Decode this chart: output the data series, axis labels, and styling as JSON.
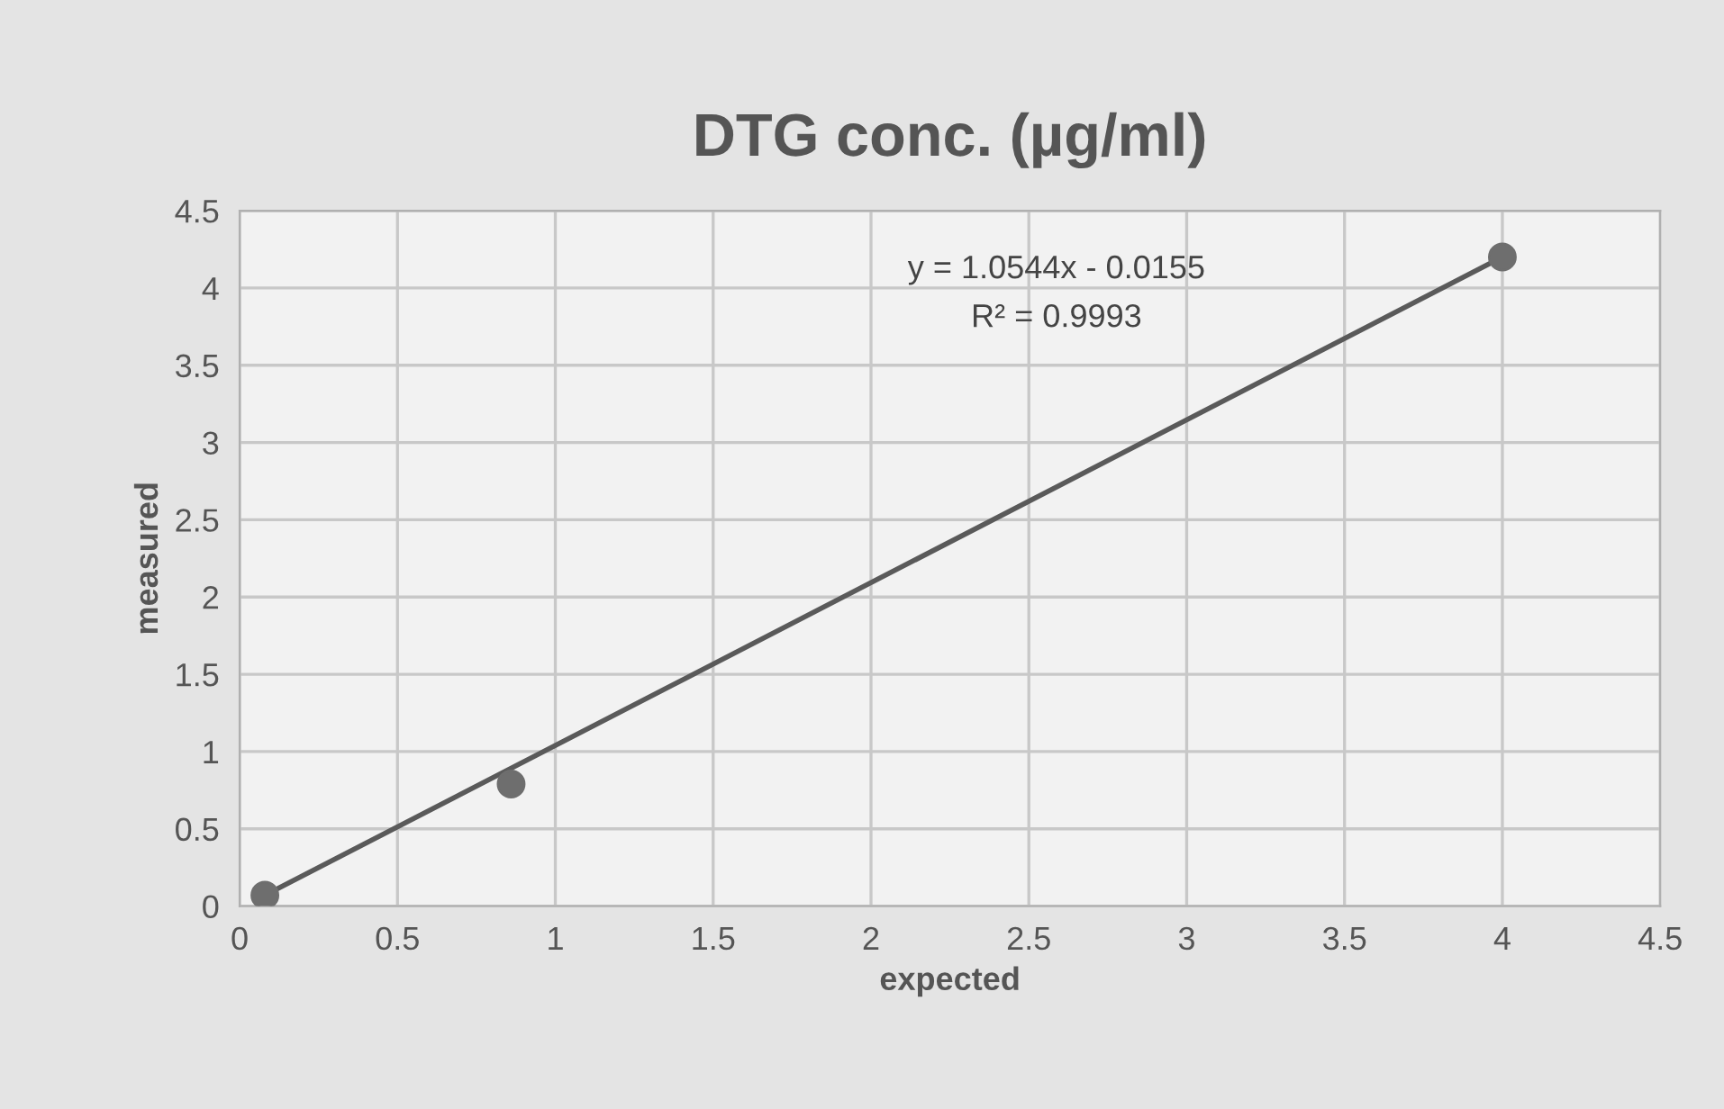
{
  "chart_data": {
    "type": "scatter",
    "title": "DTG conc. (µg/ml)",
    "xlabel": "expected",
    "ylabel": "measured",
    "series": [
      {
        "color": "#6e6e6e",
        "x": [
          0.08,
          0.86,
          4.0
        ],
        "values": [
          0.07,
          0.79,
          4.2
        ],
        "marker": "circle"
      },
      {
        "type": "line",
        "color": "#5a5a5a",
        "x": [
          0.08,
          4.0
        ],
        "values": [
          0.07,
          4.2
        ],
        "marker": "none",
        "line_style": "solid"
      }
    ],
    "annotations": [
      "y = 1.0544x - 0.0155",
      "R² = 0.9993"
    ],
    "xlim": [
      0,
      4.5
    ],
    "ylim": [
      0,
      4.5
    ],
    "xticks": [
      0,
      0.5,
      1,
      1.5,
      2,
      2.5,
      3,
      3.5,
      4,
      4.5
    ],
    "yticks": [
      0,
      0.5,
      1,
      1.5,
      2,
      2.5,
      3,
      3.5,
      4,
      4.5
    ],
    "grid": true,
    "legend": false
  }
}
